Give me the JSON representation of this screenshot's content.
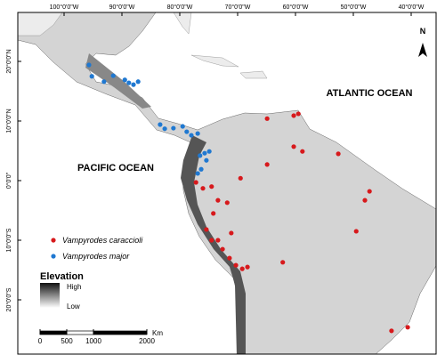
{
  "map": {
    "xticks": [
      {
        "value": -100,
        "label": "100°0'0\"W"
      },
      {
        "value": -90,
        "label": "90°0'0\"W"
      },
      {
        "value": -80,
        "label": "80°0'0\"W"
      },
      {
        "value": -70,
        "label": "70°0'0\"W"
      },
      {
        "value": -60,
        "label": "60°0'0\"W"
      },
      {
        "value": -50,
        "label": "50°0'0\"W"
      },
      {
        "value": -40,
        "label": "40°0'0\"W"
      }
    ],
    "yticks": [
      {
        "value": 20,
        "label": "20°0'0\"N"
      },
      {
        "value": 10,
        "label": "10°0'0\"N"
      },
      {
        "value": 0,
        "label": "0°0'0\""
      },
      {
        "value": -10,
        "label": "10°0'0\"S"
      },
      {
        "value": -20,
        "label": "20°0'0\"S"
      }
    ],
    "labels": {
      "atlantic": "ATLANTIC OCEAN",
      "pacific": "PACIFIC OCEAN",
      "north": "N"
    },
    "series": [
      {
        "name": "Vampyrodes caraccioli",
        "color": "#d7191c",
        "points": [
          [
            -77.2,
            -0.3
          ],
          [
            -76.0,
            -1.3
          ],
          [
            -74.5,
            -1.0
          ],
          [
            -73.4,
            -3.3
          ],
          [
            -71.8,
            -3.7
          ],
          [
            -74.2,
            -5.5
          ],
          [
            -75.4,
            -8.2
          ],
          [
            -74.5,
            -10.0
          ],
          [
            -73.4,
            -10.0
          ],
          [
            -72.6,
            -11.5
          ],
          [
            -71.4,
            -13.0
          ],
          [
            -70.3,
            -14.2
          ],
          [
            -69.2,
            -14.8
          ],
          [
            -68.3,
            -14.5
          ],
          [
            -71.1,
            -8.8
          ],
          [
            -69.5,
            0.4
          ],
          [
            -64.9,
            10.4
          ],
          [
            -60.3,
            10.9
          ],
          [
            -59.5,
            11.2
          ],
          [
            -60.3,
            5.7
          ],
          [
            -58.8,
            4.9
          ],
          [
            -64.9,
            2.7
          ],
          [
            -52.6,
            4.5
          ],
          [
            -47.2,
            -1.8
          ],
          [
            -48.0,
            -3.3
          ],
          [
            -49.5,
            -8.5
          ],
          [
            -62.2,
            -13.7
          ],
          [
            -43.4,
            -25.2
          ],
          [
            -40.6,
            -24.6
          ]
        ]
      },
      {
        "name": "Vampyrodes major",
        "color": "#1f78d1",
        "points": [
          [
            -95.7,
            19.4
          ],
          [
            -95.2,
            17.5
          ],
          [
            -93.1,
            16.6
          ],
          [
            -91.5,
            17.6
          ],
          [
            -89.5,
            16.9
          ],
          [
            -88.8,
            16.4
          ],
          [
            -88.0,
            16.1
          ],
          [
            -87.2,
            16.6
          ],
          [
            -83.4,
            9.4
          ],
          [
            -82.6,
            8.7
          ],
          [
            -81.1,
            8.8
          ],
          [
            -79.5,
            9.1
          ],
          [
            -78.8,
            8.2
          ],
          [
            -78.0,
            7.6
          ],
          [
            -76.9,
            7.9
          ],
          [
            -74.9,
            4.9
          ],
          [
            -76.5,
            4.2
          ],
          [
            -75.7,
            4.6
          ],
          [
            -75.4,
            3.4
          ],
          [
            -76.3,
            1.9
          ],
          [
            -76.9,
            1.2
          ]
        ]
      }
    ],
    "elevation": {
      "title": "Elevation",
      "high": "High",
      "low": "Low"
    },
    "scale": {
      "unit": "Km",
      "ticks": [
        0,
        500,
        1000,
        2000
      ]
    }
  }
}
